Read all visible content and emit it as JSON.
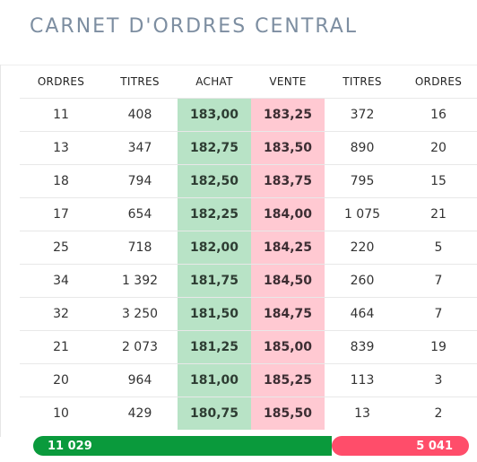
{
  "title": "CARNET D'ORDRES CENTRAL",
  "columns": [
    "ORDRES",
    "TITRES",
    "ACHAT",
    "VENTE",
    "TITRES",
    "ORDRES"
  ],
  "rows": [
    {
      "buy_orders": "11",
      "buy_qty": "408",
      "bid": "183,00",
      "ask": "183,25",
      "sell_qty": "372",
      "sell_orders": "16"
    },
    {
      "buy_orders": "13",
      "buy_qty": "347",
      "bid": "182,75",
      "ask": "183,50",
      "sell_qty": "890",
      "sell_orders": "20"
    },
    {
      "buy_orders": "18",
      "buy_qty": "794",
      "bid": "182,50",
      "ask": "183,75",
      "sell_qty": "795",
      "sell_orders": "15"
    },
    {
      "buy_orders": "17",
      "buy_qty": "654",
      "bid": "182,25",
      "ask": "184,00",
      "sell_qty": "1 075",
      "sell_orders": "21"
    },
    {
      "buy_orders": "25",
      "buy_qty": "718",
      "bid": "182,00",
      "ask": "184,25",
      "sell_qty": "220",
      "sell_orders": "5"
    },
    {
      "buy_orders": "34",
      "buy_qty": "1 392",
      "bid": "181,75",
      "ask": "184,50",
      "sell_qty": "260",
      "sell_orders": "7"
    },
    {
      "buy_orders": "32",
      "buy_qty": "3 250",
      "bid": "181,50",
      "ask": "184,75",
      "sell_qty": "464",
      "sell_orders": "7"
    },
    {
      "buy_orders": "21",
      "buy_qty": "2 073",
      "bid": "181,25",
      "ask": "185,00",
      "sell_qty": "839",
      "sell_orders": "19"
    },
    {
      "buy_orders": "20",
      "buy_qty": "964",
      "bid": "181,00",
      "ask": "185,25",
      "sell_qty": "113",
      "sell_orders": "3"
    },
    {
      "buy_orders": "10",
      "buy_qty": "429",
      "bid": "180,75",
      "ask": "185,50",
      "sell_qty": "13",
      "sell_orders": "2"
    }
  ],
  "totals": {
    "buy_total": "11 029",
    "sell_total": "5 041",
    "buy_share": 0.686,
    "buy_color": "#0a9a3c",
    "sell_color": "#ff4d6a"
  },
  "colors": {
    "bid_bg": "#b8e3c6",
    "ask_bg": "#ffc9d2",
    "title": "#7d8ea1"
  }
}
